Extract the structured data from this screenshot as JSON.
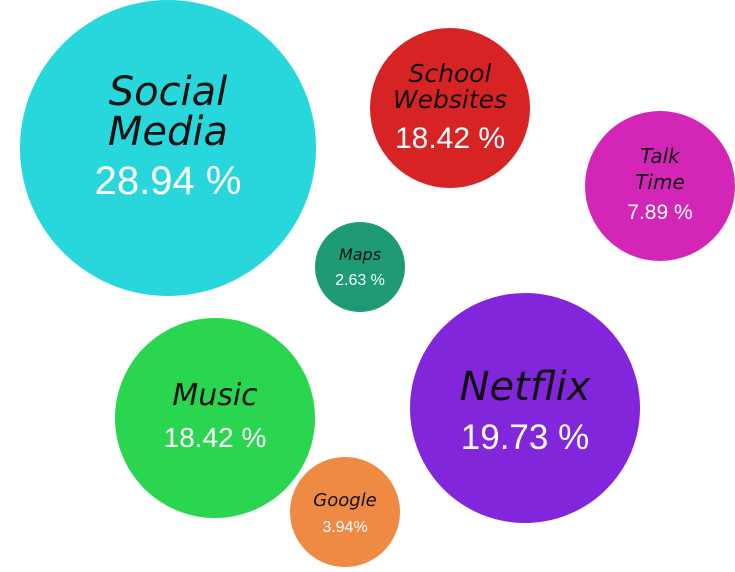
{
  "chart_data": {
    "type": "bubble",
    "title": "",
    "items": [
      {
        "key": "social-media",
        "label_lines": [
          "Social",
          "Media"
        ],
        "value_text": "28.94 %",
        "value": 28.94,
        "color": "#27D7DB"
      },
      {
        "key": "school-websites",
        "label_lines": [
          "School",
          "Websites"
        ],
        "value_text": "18.42 %",
        "value": 18.42,
        "color": "#D82324"
      },
      {
        "key": "talk-time",
        "label_lines": [
          "Talk",
          "Time"
        ],
        "value_text": "7.89 %",
        "value": 7.89,
        "color": "#D326B6"
      },
      {
        "key": "maps",
        "label_lines": [
          "Maps"
        ],
        "value_text": "2.63 %",
        "value": 2.63,
        "color": "#1E9A76"
      },
      {
        "key": "music",
        "label_lines": [
          "Music"
        ],
        "value_text": "18.42 %",
        "value": 18.42,
        "color": "#2AD650"
      },
      {
        "key": "netflix",
        "label_lines": [
          "Netflix"
        ],
        "value_text": "19.73 %",
        "value": 19.73,
        "color": "#8126DA"
      },
      {
        "key": "google",
        "label_lines": [
          "Google"
        ],
        "value_text": "3.94%",
        "value": 3.94,
        "color": "#EE8A43"
      }
    ]
  }
}
